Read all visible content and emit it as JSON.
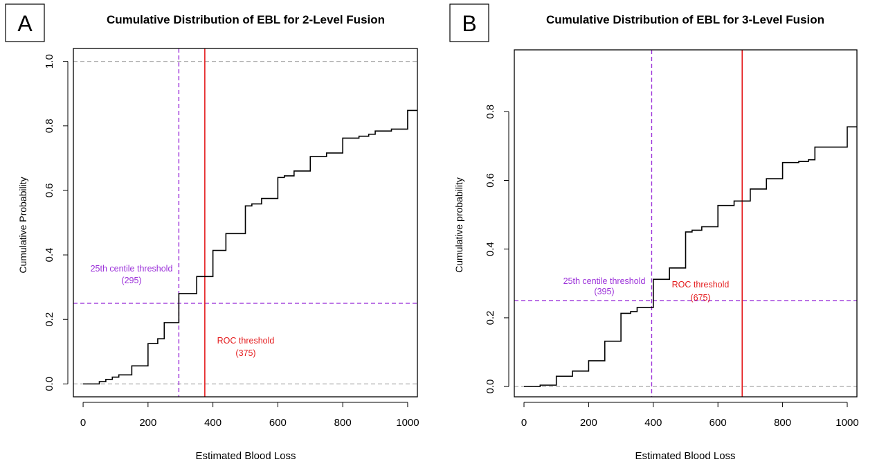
{
  "panels": [
    {
      "letter": "A"
    },
    {
      "letter": "B"
    }
  ],
  "chart_data": [
    {
      "type": "step",
      "title": "Cumulative Distribution of EBL for 2-Level Fusion",
      "xlabel": "Estimated Blood Loss",
      "ylabel": "Cumulative Probability",
      "xlim": [
        -30,
        1030
      ],
      "ylim": [
        -0.04,
        1.04
      ],
      "xticks": [
        "0",
        "200",
        "400",
        "600",
        "800",
        "1000"
      ],
      "xtick_values": [
        0,
        200,
        400,
        600,
        800,
        1000
      ],
      "yticks": [
        "0.0",
        "0.2",
        "0.4",
        "0.6",
        "0.8",
        "1.0"
      ],
      "ytick_values": [
        0,
        0.2,
        0.4,
        0.6,
        0.8,
        1.0
      ],
      "ref_hlines_gray": [
        0,
        1
      ],
      "thresholds": {
        "centile": {
          "label": "25th centile threshold",
          "value_label": "(295)",
          "x": 295,
          "y": 0.25,
          "color": "#9B30D9"
        },
        "roc": {
          "label": "ROC threshold",
          "value_label": "(375)",
          "x": 375,
          "color": "#E41A1C"
        }
      },
      "steps": [
        [
          0,
          0
        ],
        [
          50,
          0.007
        ],
        [
          70,
          0.014
        ],
        [
          90,
          0.021
        ],
        [
          110,
          0.028
        ],
        [
          150,
          0.056
        ],
        [
          200,
          0.125
        ],
        [
          230,
          0.14
        ],
        [
          250,
          0.19
        ],
        [
          295,
          0.28
        ],
        [
          350,
          0.333
        ],
        [
          400,
          0.414
        ],
        [
          440,
          0.466
        ],
        [
          500,
          0.552
        ],
        [
          520,
          0.558
        ],
        [
          550,
          0.575
        ],
        [
          600,
          0.64
        ],
        [
          620,
          0.645
        ],
        [
          650,
          0.66
        ],
        [
          700,
          0.705
        ],
        [
          750,
          0.716
        ],
        [
          800,
          0.762
        ],
        [
          850,
          0.768
        ],
        [
          880,
          0.774
        ],
        [
          900,
          0.784
        ],
        [
          950,
          0.79
        ],
        [
          1000,
          0.848
        ]
      ],
      "x_end": 1030
    },
    {
      "type": "step",
      "title": "Cumulative Distribution of EBL for 3-Level Fusion",
      "xlabel": "Estimated Blood Loss",
      "ylabel": "Cumulative probability",
      "xlim": [
        -30,
        1030
      ],
      "ylim": [
        -0.03,
        0.98
      ],
      "xticks": [
        "0",
        "200",
        "400",
        "600",
        "800",
        "1000"
      ],
      "xtick_values": [
        0,
        200,
        400,
        600,
        800,
        1000
      ],
      "yticks": [
        "0.0",
        "0.2",
        "0.4",
        "0.6",
        "0.8"
      ],
      "ytick_values": [
        0,
        0.2,
        0.4,
        0.6,
        0.8
      ],
      "ref_hlines_gray": [
        0
      ],
      "thresholds": {
        "centile": {
          "label": "25th centile threshold",
          "value_label": "(395)",
          "x": 395,
          "y": 0.25,
          "color": "#9B30D9"
        },
        "roc": {
          "label": "ROC threshold",
          "value_label": "(675)",
          "x": 675,
          "color": "#E41A1C"
        }
      },
      "steps": [
        [
          0,
          0
        ],
        [
          50,
          0.004
        ],
        [
          100,
          0.03
        ],
        [
          150,
          0.045
        ],
        [
          200,
          0.075
        ],
        [
          250,
          0.132
        ],
        [
          300,
          0.213
        ],
        [
          330,
          0.218
        ],
        [
          350,
          0.23
        ],
        [
          400,
          0.312
        ],
        [
          450,
          0.345
        ],
        [
          500,
          0.45
        ],
        [
          520,
          0.455
        ],
        [
          550,
          0.465
        ],
        [
          600,
          0.527
        ],
        [
          650,
          0.54
        ],
        [
          700,
          0.575
        ],
        [
          750,
          0.605
        ],
        [
          800,
          0.652
        ],
        [
          850,
          0.655
        ],
        [
          880,
          0.66
        ],
        [
          900,
          0.697
        ],
        [
          1000,
          0.756
        ]
      ],
      "x_end": 1030
    }
  ]
}
